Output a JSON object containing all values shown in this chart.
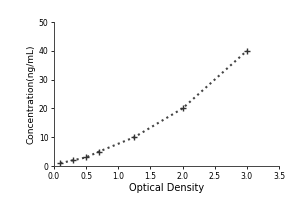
{
  "x": [
    0.1,
    0.3,
    0.5,
    0.7,
    1.25,
    2.0,
    3.0
  ],
  "y": [
    1,
    2,
    3,
    5,
    10,
    20,
    40
  ],
  "xlabel": "Optical Density",
  "ylabel": "Concentration(ng/mL)",
  "xlim": [
    0,
    3.5
  ],
  "ylim": [
    0,
    50
  ],
  "xticks": [
    0,
    0.5,
    1.0,
    1.5,
    2.0,
    2.5,
    3.0,
    3.5
  ],
  "yticks": [
    0,
    10,
    20,
    30,
    40,
    50
  ],
  "line_style": "dotted",
  "line_color": "#444444",
  "marker": "+",
  "marker_size": 5,
  "marker_color": "#333333",
  "bg_color": "#ffffff",
  "line_width": 1.5,
  "xlabel_fontsize": 7,
  "ylabel_fontsize": 6.5,
  "tick_fontsize": 5.5
}
